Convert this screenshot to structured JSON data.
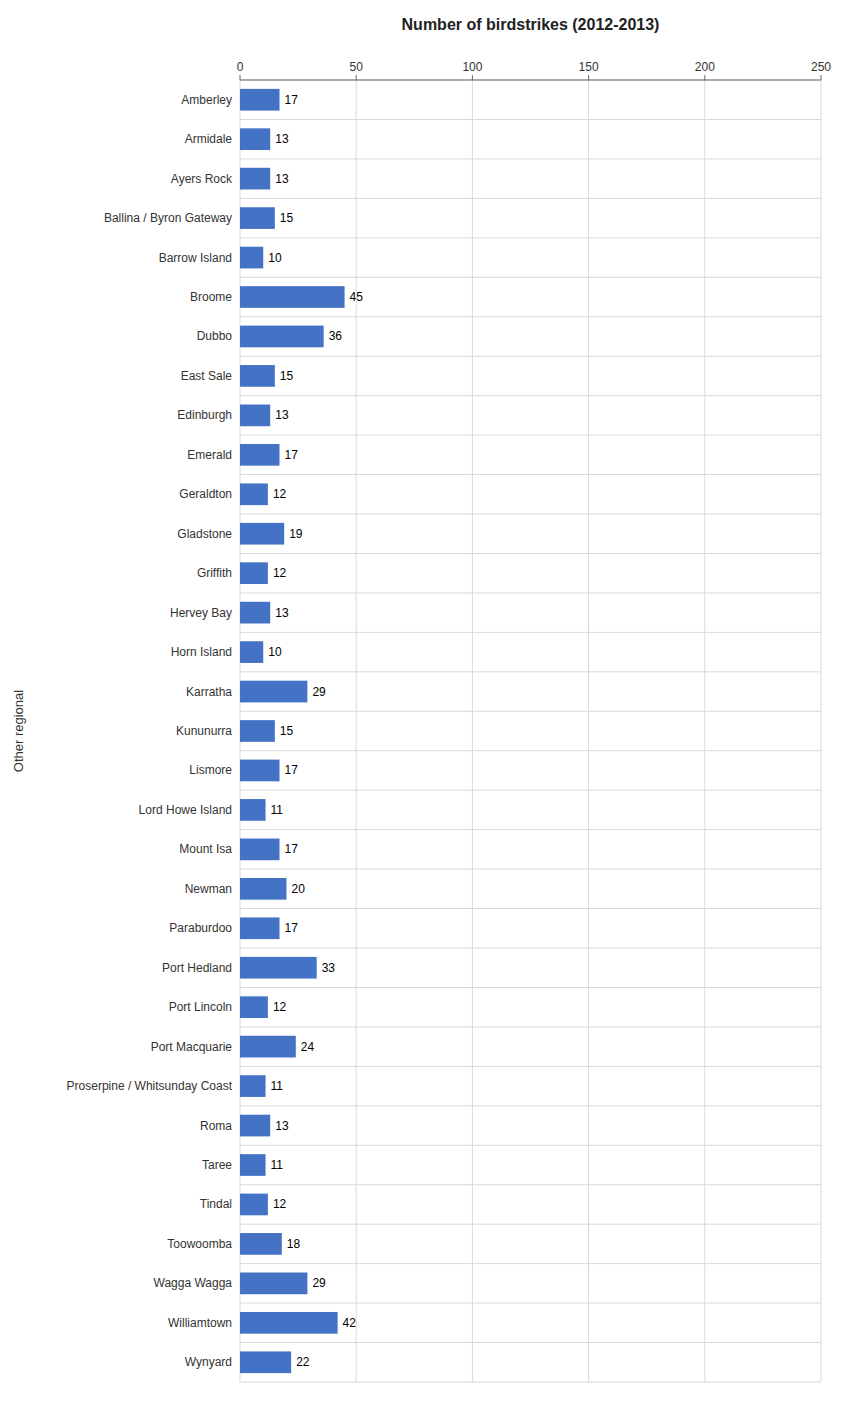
{
  "chart_data": {
    "type": "bar",
    "orientation": "horizontal",
    "title": "Number of birdstrikes (2012-2013)",
    "ylabel": "Other regional",
    "color": "#4472C4",
    "xlim": [
      0,
      250
    ],
    "xticks": [
      0,
      50,
      100,
      150,
      200,
      250
    ],
    "grid": true,
    "data_labels": true,
    "categories": [
      "Amberley",
      "Armidale",
      "Ayers Rock",
      "Ballina / Byron Gateway",
      "Barrow Island",
      "Broome",
      "Dubbo",
      "East Sale",
      "Edinburgh",
      "Emerald",
      "Geraldton",
      "Gladstone",
      "Griffith",
      "Hervey Bay",
      "Horn Island",
      "Karratha",
      "Kununurra",
      "Lismore",
      "Lord Howe Island",
      "Mount Isa",
      "Newman",
      "Paraburdoo",
      "Port Hedland",
      "Port Lincoln",
      "Port Macquarie",
      "Proserpine / Whitsunday Coast",
      "Roma",
      "Taree",
      "Tindal",
      "Toowoomba",
      "Wagga Wagga",
      "Williamtown",
      "Wynyard"
    ],
    "values": [
      17,
      13,
      13,
      15,
      10,
      45,
      36,
      15,
      13,
      17,
      12,
      19,
      12,
      13,
      10,
      29,
      15,
      17,
      11,
      17,
      20,
      17,
      33,
      12,
      24,
      11,
      13,
      11,
      12,
      18,
      29,
      42,
      22
    ]
  }
}
